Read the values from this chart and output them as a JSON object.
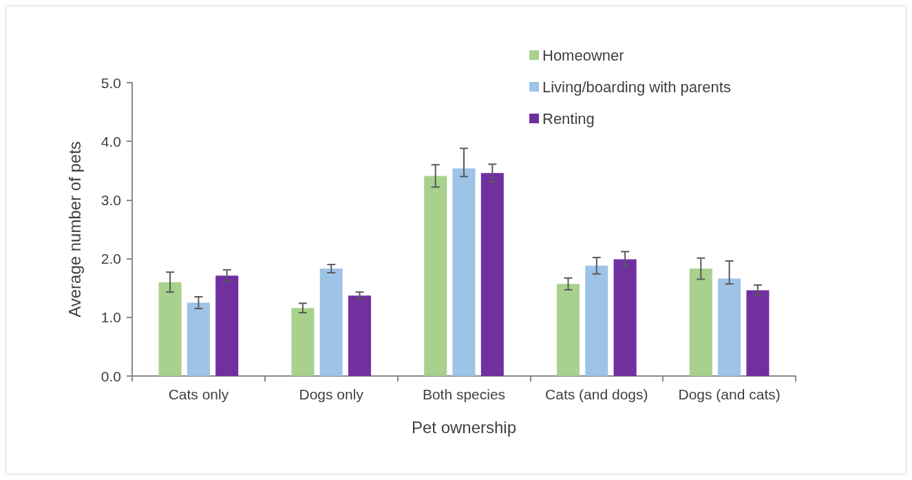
{
  "chart_data": {
    "type": "bar",
    "xlabel": "Pet ownership",
    "ylabel": "Average number of pets",
    "categories": [
      "Cats only",
      "Dogs only",
      "Both species",
      "Cats (and dogs)",
      "Dogs (and cats)"
    ],
    "series": [
      {
        "name": "Homeowner",
        "color": "#a9d18e",
        "values": [
          1.6,
          1.16,
          3.41,
          1.57,
          1.83
        ],
        "errors": [
          0.17,
          0.08,
          0.19,
          0.1,
          0.18
        ]
      },
      {
        "name": "Living/boarding with parents",
        "color": "#9dc3e6",
        "values": [
          1.25,
          1.83,
          3.54,
          1.88,
          1.66
        ],
        "errors": [
          0.1,
          0.07,
          [
            3.4,
            3.88
          ],
          0.14,
          [
            1.57,
            1.96
          ]
        ]
      },
      {
        "name": "Renting",
        "color": "#7030a0",
        "values": [
          1.71,
          1.37,
          3.46,
          1.99,
          1.46
        ],
        "errors": [
          0.1,
          0.06,
          0.15,
          0.13,
          0.09
        ]
      }
    ],
    "ylim": [
      0,
      5
    ],
    "yticks": [
      {
        "value": 0,
        "label": "0.0"
      },
      {
        "value": 1,
        "label": "1.0"
      },
      {
        "value": 2,
        "label": "2.0"
      },
      {
        "value": 3,
        "label": "3.0"
      },
      {
        "value": 4,
        "label": "4.0"
      },
      {
        "value": 5,
        "label": "5.0"
      }
    ],
    "grid": false,
    "legend": "top right"
  }
}
